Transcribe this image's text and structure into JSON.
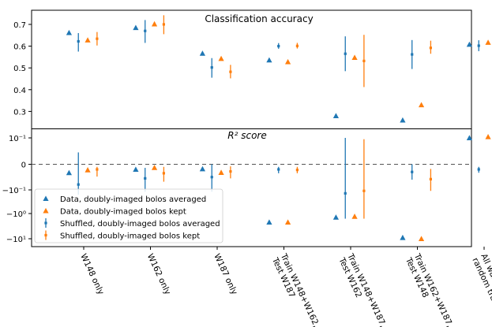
{
  "chart_data": [
    {
      "type": "scatter",
      "title": "Classification accuracy",
      "ylim": [
        0.22,
        0.765
      ],
      "yticks": [
        0.3,
        0.4,
        0.5,
        0.6,
        0.7
      ],
      "ytick_labels": [
        "0.3",
        "0.4",
        "0.5",
        "0.6",
        "0.7"
      ],
      "categories": [
        "W148 only",
        "W162 only",
        "W187 only",
        "Train W148+W162, Test W187",
        "Train W148+W187, Test W162",
        "Train W162+W187, Test W148",
        "All wafers, random train/test"
      ],
      "series": [
        {
          "name": "Data, doubly-imaged bolos averaged",
          "color": "#1f77b4",
          "marker": "triangle",
          "offset": -0.22,
          "values": [
            0.662,
            0.685,
            0.567,
            0.536,
            0.28,
            0.26,
            0.608
          ]
        },
        {
          "name": "Data, doubly-imaged bolos kept",
          "color": "#ff7f0e",
          "marker": "triangle",
          "offset": 0.06,
          "values": [
            0.628,
            0.702,
            0.543,
            0.528,
            0.548,
            0.33,
            0.617
          ]
        },
        {
          "name": "Shuffled, doubly-imaged bolos averaged",
          "color": "#1f77b4",
          "marker": "errorbar",
          "offset": -0.08,
          "values": [
            0.622,
            0.67,
            0.502,
            0.6,
            0.565,
            0.562,
            0.602
          ],
          "err_low": [
            0.575,
            0.615,
            0.455,
            0.588,
            0.485,
            0.495,
            0.577
          ],
          "err_high": [
            0.66,
            0.72,
            0.545,
            0.614,
            0.645,
            0.628,
            0.627
          ]
        },
        {
          "name": "Shuffled, doubly-imaged bolos kept",
          "color": "#ff7f0e",
          "marker": "errorbar",
          "offset": 0.2,
          "values": [
            0.634,
            0.7,
            0.482,
            0.601,
            0.532,
            0.592,
            0.606
          ],
          "err_low": [
            0.603,
            0.655,
            0.452,
            0.589,
            0.412,
            0.565,
            0.586
          ],
          "err_high": [
            0.665,
            0.742,
            0.514,
            0.615,
            0.652,
            0.625,
            0.627
          ]
        }
      ]
    },
    {
      "type": "scatter",
      "title": "R² score",
      "yscale": "symlog",
      "yticks": [
        0.1,
        0,
        -0.1,
        -1,
        -10
      ],
      "ytick_labels": [
        "10⁻¹",
        "0",
        "−10⁻¹",
        "−10⁰",
        "−10¹"
      ],
      "reference_line": 0,
      "categories": [
        "W148 only",
        "W162 only",
        "W187 only",
        "Train W148+W162, Test W187",
        "Train W148+W187, Test W162",
        "Train W162+W187, Test W148",
        "All wafers, random train/test"
      ],
      "series": [
        {
          "name": "Data, doubly-imaged bolos averaged",
          "color": "#1f77b4",
          "marker": "triangle",
          "offset": -0.22,
          "values": [
            -0.033,
            -0.02,
            -0.018,
            -2.2,
            -1.4,
            -9.0,
            0.1
          ]
        },
        {
          "name": "Data, doubly-imaged bolos kept",
          "color": "#ff7f0e",
          "marker": "triangle",
          "offset": 0.06,
          "values": [
            -0.022,
            -0.013,
            -0.032,
            -2.2,
            -1.3,
            -10.0,
            0.11
          ]
        },
        {
          "name": "Shuffled, doubly-imaged bolos averaged",
          "color": "#1f77b4",
          "marker": "errorbar",
          "offset": -0.08,
          "values": [
            -0.079,
            -0.055,
            -0.05,
            -0.02,
            -0.14,
            -0.03,
            -0.02
          ],
          "err_low": [
            -0.16,
            -0.12,
            -0.12,
            -0.035,
            -1.6,
            -0.06,
            -0.033
          ],
          "err_high": [
            0.045,
            -0.014,
            0.0,
            -0.01,
            0.1,
            0.0,
            -0.01
          ]
        },
        {
          "name": "Shuffled, doubly-imaged bolos kept",
          "color": "#ff7f0e",
          "marker": "errorbar",
          "offset": 0.2,
          "values": [
            -0.02,
            -0.035,
            -0.028,
            -0.022,
            -0.11,
            -0.058,
            -0.012
          ],
          "err_low": [
            -0.048,
            -0.068,
            -0.055,
            -0.035,
            -1.6,
            -0.11,
            -0.017
          ],
          "err_high": [
            -0.01,
            -0.01,
            -0.008,
            -0.01,
            0.095,
            -0.018,
            -0.008
          ]
        }
      ]
    }
  ],
  "xtick_labels": [
    [
      "W148 only"
    ],
    [
      "W162 only"
    ],
    [
      "W187 only"
    ],
    [
      "Train W148+W162,",
      "Test W187"
    ],
    [
      "Train W148+W187,",
      "Test W162"
    ],
    [
      "Train W162+W187,",
      "Test W148"
    ],
    [
      "All wafers,",
      "random train/test"
    ]
  ],
  "legend": {
    "location": "lower-left of bottom panel",
    "entries": [
      "Data, doubly-imaged bolos averaged",
      "Data, doubly-imaged bolos kept",
      "Shuffled, doubly-imaged bolos averaged",
      "Shuffled, doubly-imaged bolos kept"
    ]
  },
  "colors": {
    "blue": "#1f77b4",
    "orange": "#ff7f0e",
    "dashed_line": "#555555"
  }
}
